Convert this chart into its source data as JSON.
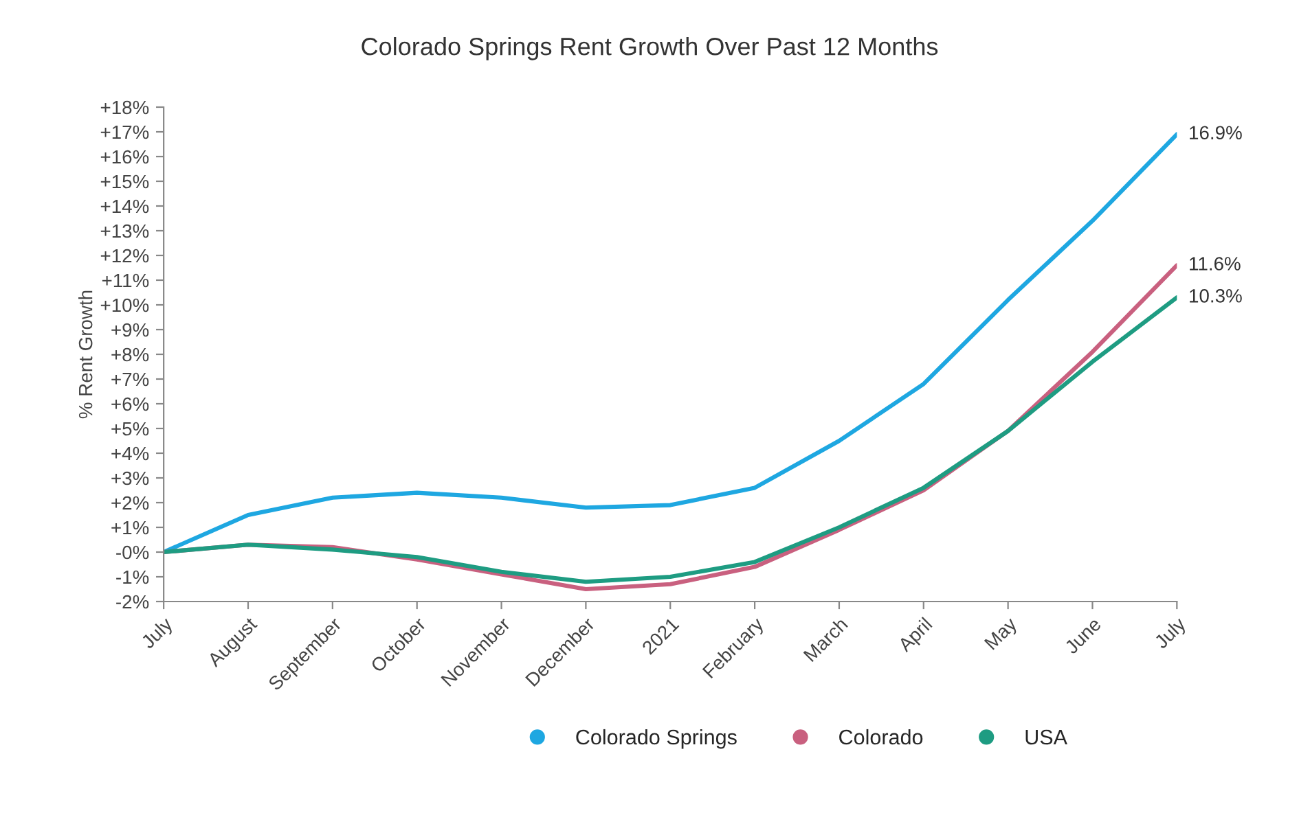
{
  "chart_data": {
    "type": "line",
    "title": "Colorado Springs Rent Growth Over Past 12 Months",
    "ylabel": "% Rent Growth",
    "categories": [
      "July",
      "August",
      "September",
      "October",
      "November",
      "December",
      "2021",
      "February",
      "March",
      "April",
      "May",
      "June",
      "July"
    ],
    "series": [
      {
        "name": "Colorado Springs",
        "color": "#1ea7e1",
        "values": [
          0,
          1.5,
          2.2,
          2.4,
          2.2,
          1.8,
          1.9,
          2.6,
          4.5,
          6.8,
          10.2,
          13.4,
          16.9
        ],
        "value_labels": [
          null,
          null,
          null,
          null,
          null,
          null,
          null,
          null,
          null,
          null,
          null,
          null,
          "16.9%"
        ]
      },
      {
        "name": "Colorado",
        "color": "#c9607f",
        "values": [
          0,
          0.3,
          0.2,
          -0.3,
          -0.9,
          -1.5,
          -1.3,
          -0.6,
          0.9,
          2.5,
          4.9,
          8.1,
          11.6
        ],
        "value_labels": [
          null,
          null,
          null,
          null,
          null,
          null,
          null,
          null,
          null,
          null,
          null,
          null,
          "11.6%"
        ]
      },
      {
        "name": "USA",
        "color": "#1e9c82",
        "values": [
          0,
          0.3,
          0.1,
          -0.2,
          -0.8,
          -1.2,
          -1.0,
          -0.4,
          1.0,
          2.6,
          4.9,
          7.7,
          10.3
        ],
        "value_labels": [
          null,
          null,
          null,
          null,
          null,
          null,
          null,
          null,
          null,
          null,
          null,
          null,
          "10.3%"
        ]
      }
    ],
    "ylim": [
      -2,
      18
    ],
    "yticks": [
      {
        "value": -2,
        "label": "-2%"
      },
      {
        "value": -1,
        "label": "-1%"
      },
      {
        "value": 0,
        "label": "-0%"
      },
      {
        "value": 1,
        "label": "+1%"
      },
      {
        "value": 2,
        "label": "+2%"
      },
      {
        "value": 3,
        "label": "+3%"
      },
      {
        "value": 4,
        "label": "+4%"
      },
      {
        "value": 5,
        "label": "+5%"
      },
      {
        "value": 6,
        "label": "+6%"
      },
      {
        "value": 7,
        "label": "+7%"
      },
      {
        "value": 8,
        "label": "+8%"
      },
      {
        "value": 9,
        "label": "+9%"
      },
      {
        "value": 10,
        "label": "+10%"
      },
      {
        "value": 11,
        "label": "+11%"
      },
      {
        "value": 12,
        "label": "+12%"
      },
      {
        "value": 13,
        "label": "+13%"
      },
      {
        "value": 14,
        "label": "+14%"
      },
      {
        "value": 15,
        "label": "+15%"
      },
      {
        "value": 16,
        "label": "+16%"
      },
      {
        "value": 17,
        "label": "+17%"
      },
      {
        "value": 18,
        "label": "+18%"
      }
    ],
    "grid": false,
    "legend": "bottom",
    "marker": "none",
    "line_style": "solid"
  }
}
